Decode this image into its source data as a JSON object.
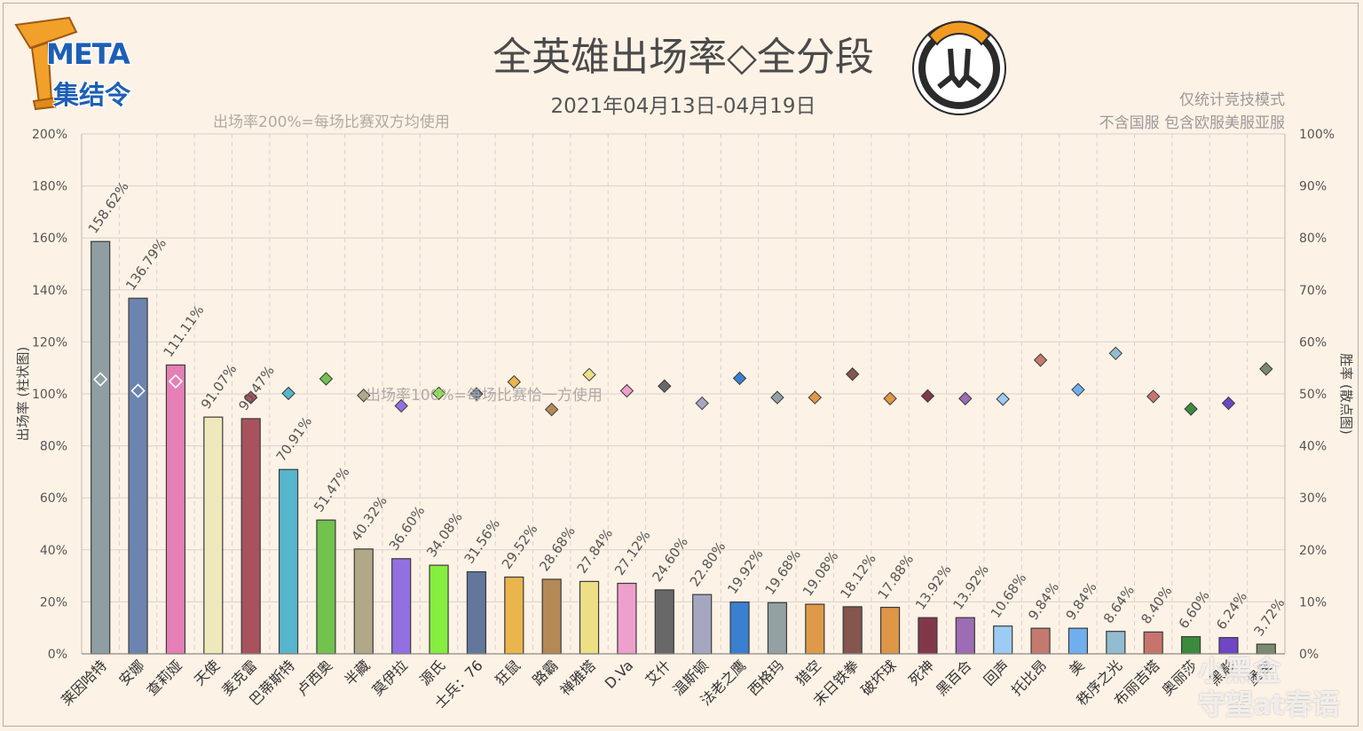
{
  "logo": {
    "text_meta": "META",
    "text_cn": "集结令"
  },
  "watermark": {
    "line1": "小黑盒",
    "line2": "守望at春语"
  },
  "chart_data": {
    "type": "bar",
    "title": "全英雄出场率◇全分段",
    "subtitle": "2021年04月13日-04月19日",
    "notes": [
      "仅统计竞技模式",
      "不含国服 包含欧服美服亚服"
    ],
    "ylabel": "出场率 (柱状图)",
    "y2label": "胜率 (散点图)",
    "ylim": [
      0,
      200
    ],
    "y2lim": [
      0,
      100
    ],
    "yticks": [
      "0%",
      "20%",
      "40%",
      "60%",
      "80%",
      "100%",
      "120%",
      "140%",
      "160%",
      "180%",
      "200%"
    ],
    "y2ticks": [
      "0%",
      "10%",
      "20%",
      "30%",
      "40%",
      "50%",
      "60%",
      "70%",
      "80%",
      "90%",
      "100%"
    ],
    "annotations": [
      {
        "text": "出场率200%=每场比赛双方均使用",
        "y": 200
      },
      {
        "text": "出场率100%=每场比赛恰一方使用",
        "y": 100
      }
    ],
    "categories": [
      "莱因哈特",
      "安娜",
      "查莉娅",
      "天使",
      "麦克雷",
      "巴蒂斯特",
      "卢西奥",
      "半藏",
      "莫伊拉",
      "源氏",
      "士兵：76",
      "狂鼠",
      "路霸",
      "禅雅塔",
      "D.Va",
      "艾什",
      "温斯顿",
      "法老之鹰",
      "西格玛",
      "猎空",
      "末日铁拳",
      "破坏球",
      "死神",
      "黑百合",
      "回声",
      "托比昂",
      "美",
      "秩序之光",
      "布丽吉塔",
      "奥丽莎",
      "黑影",
      "堡垒"
    ],
    "series": [
      {
        "type": "bar",
        "values": [
          158.62,
          136.79,
          111.11,
          91.07,
          90.47,
          70.91,
          51.47,
          40.32,
          36.6,
          34.08,
          31.56,
          29.52,
          28.68,
          27.84,
          27.12,
          24.6,
          22.8,
          19.92,
          19.68,
          19.08,
          18.12,
          17.88,
          13.92,
          13.92,
          10.68,
          9.84,
          9.84,
          8.64,
          8.4,
          6.6,
          6.24,
          3.72
        ],
        "labels": [
          "158.62%",
          "136.79%",
          "111.11%",
          "91.07%",
          "90.47%",
          "70.91%",
          "51.47%",
          "40.32%",
          "36.60%",
          "34.08%",
          "31.56%",
          "29.52%",
          "28.68%",
          "27.84%",
          "27.12%",
          "24.60%",
          "22.80%",
          "19.92%",
          "19.68%",
          "19.08%",
          "18.12%",
          "17.88%",
          "13.92%",
          "13.92%",
          "10.68%",
          "9.84%",
          "9.84%",
          "8.64%",
          "8.40%",
          "6.60%",
          "6.24%",
          "3.72%"
        ]
      },
      {
        "type": "scatter",
        "values": [
          52.8,
          50.6,
          52.4,
          null,
          49.3,
          50.1,
          52.9,
          49.7,
          47.7,
          50.1,
          50.0,
          52.3,
          47.0,
          53.7,
          50.6,
          51.5,
          48.2,
          53.0,
          49.3,
          49.3,
          53.8,
          49.1,
          49.6,
          49.1,
          49.0,
          56.5,
          50.8,
          57.8,
          49.5,
          47.1,
          48.2,
          54.8
        ]
      }
    ],
    "colors": [
      "#8f9ea3",
      "#6c84b0",
      "#e57fb5",
      "#efe8bc",
      "#a8525e",
      "#57b5cd",
      "#71c24f",
      "#b1a887",
      "#9270e1",
      "#86ee3e",
      "#63769b",
      "#e9b54c",
      "#b48955",
      "#ede084",
      "#eea0cc",
      "#686868",
      "#a5a7c1",
      "#3a7fd0",
      "#93a0a4",
      "#de9a49",
      "#855550",
      "#de9649",
      "#82384b",
      "#9c6cb4",
      "#9ccbf3",
      "#c57a70",
      "#6faeef",
      "#92bcd0",
      "#c5756d",
      "#3b8b3e",
      "#6e46c6",
      "#7a8a70"
    ],
    "grid": true,
    "legend": "none"
  }
}
